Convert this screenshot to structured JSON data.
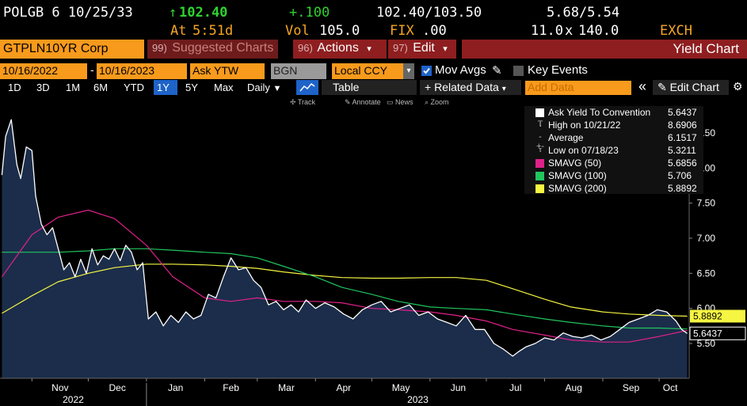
{
  "quote": {
    "security": "POLGB 6 10/25/33",
    "arrow": "↑",
    "price": "102.40",
    "change": "+.100",
    "bid_ask": "102.40/103.50",
    "yield_bid_ask": "5.68/5.54",
    "time_label": "At",
    "time_value": "5:51d",
    "vol_label": "Vol",
    "vol_value": "105.0",
    "fix_label": "FIX",
    "fix_value": ".00",
    "size_left": "11.0",
    "size_sep": "x",
    "size_right": "140.0",
    "exch": "EXCH"
  },
  "command": {
    "ticker": "GTPLN10YR Corp",
    "suggested_num": "99)",
    "suggested_label": "Suggested Charts",
    "actions_num": "96)",
    "actions_label": "Actions",
    "edit_num": "97)",
    "edit_label": "Edit",
    "caret": "▾",
    "title": "Yield Chart"
  },
  "params": {
    "start_date": "10/16/2022",
    "dash": "-",
    "end_date": "10/16/2023",
    "field": "Ask YTW",
    "source": "BGN",
    "currency": "Local CCY",
    "mov_avgs_label": "Mov Avgs",
    "key_events_label": "Key Events",
    "dropdown_glyph": "▾",
    "pencil_glyph": "✎"
  },
  "periods": {
    "items": [
      "1D",
      "3D",
      "1M",
      "6M",
      "YTD",
      "1Y",
      "5Y",
      "Max"
    ],
    "selected": "1Y",
    "frequency": "Daily",
    "frequency_caret": "▼",
    "table_label": "Table",
    "related_label": "+ Related Data",
    "related_caret": "▾",
    "add_data_placeholder": "Add Data",
    "collapse_glyph": "«",
    "edit_chart_label": "✎ Edit Chart",
    "gear_glyph": "⚙"
  },
  "toolbar": {
    "track": "Track",
    "annotate": "Annotate",
    "news": "News",
    "zoom": "Zoom"
  },
  "legend": {
    "main": {
      "label": "Ask Yield To Convention",
      "value": "5.6437"
    },
    "high": {
      "label": "High on 10/21/22",
      "value": "8.6906"
    },
    "avg": {
      "label": "Average",
      "value": "6.1517"
    },
    "low": {
      "label": "Low on 07/18/23",
      "value": "5.3211"
    },
    "sma50": {
      "label": "SMAVG (50)",
      "value": "5.6856"
    },
    "sma100": {
      "label": "SMAVG (100)",
      "value": "5.706"
    },
    "sma200": {
      "label": "SMAVG (200)",
      "value": "5.8892"
    }
  },
  "colors": {
    "amber": "#f5a623",
    "up_green": "#2fd22f",
    "brand_red": "#8e1e20",
    "orange_field": "#f89a1c",
    "selected_blue": "#1e63c8",
    "price_line": "#ffffff",
    "price_fill": "#1b2d4a",
    "sma50": "#e0218a",
    "sma100": "#22c55e",
    "sma200": "#f5f542"
  },
  "chart_data": {
    "type": "area",
    "y_ticks": [
      "8.50",
      "8.00",
      "7.50",
      "7.00",
      "6.50",
      "6.00",
      "5.50"
    ],
    "ylim": [
      5.0,
      8.9
    ],
    "x_months": [
      "Nov",
      "Dec",
      "Jan",
      "Feb",
      "Mar",
      "Apr",
      "May",
      "Jun",
      "Jul",
      "Aug",
      "Sep",
      "Oct"
    ],
    "x_years": [
      "2022",
      "2023"
    ],
    "last_labels": {
      "sma200": "5.8892",
      "price": "5.6437"
    },
    "series": [
      {
        "name": "Ask Yield To Convention",
        "key": "price",
        "x": [
          "2022-10-16",
          "2022-10-18",
          "2022-10-21",
          "2022-10-24",
          "2022-10-26",
          "2022-10-29",
          "2022-11-01",
          "2022-11-03",
          "2022-11-06",
          "2022-11-09",
          "2022-11-12",
          "2022-11-15",
          "2022-11-18",
          "2022-11-21",
          "2022-11-24",
          "2022-11-27",
          "2022-11-30",
          "2022-12-03",
          "2022-12-06",
          "2022-12-09",
          "2022-12-12",
          "2022-12-15",
          "2022-12-18",
          "2022-12-21",
          "2022-12-24",
          "2022-12-27",
          "2022-12-30",
          "2023-01-02",
          "2023-01-06",
          "2023-01-10",
          "2023-01-14",
          "2023-01-18",
          "2023-01-22",
          "2023-01-26",
          "2023-01-30",
          "2023-02-03",
          "2023-02-07",
          "2023-02-11",
          "2023-02-15",
          "2023-02-19",
          "2023-02-23",
          "2023-02-27",
          "2023-03-03",
          "2023-03-07",
          "2023-03-11",
          "2023-03-15",
          "2023-03-19",
          "2023-03-23",
          "2023-03-27",
          "2023-04-01",
          "2023-04-06",
          "2023-04-11",
          "2023-04-16",
          "2023-04-21",
          "2023-04-26",
          "2023-05-01",
          "2023-05-06",
          "2023-05-11",
          "2023-05-16",
          "2023-05-21",
          "2023-05-26",
          "2023-05-31",
          "2023-06-05",
          "2023-06-10",
          "2023-06-15",
          "2023-06-20",
          "2023-06-25",
          "2023-06-30",
          "2023-07-05",
          "2023-07-10",
          "2023-07-15",
          "2023-07-18",
          "2023-07-22",
          "2023-07-27",
          "2023-08-01",
          "2023-08-06",
          "2023-08-11",
          "2023-08-16",
          "2023-08-21",
          "2023-08-26",
          "2023-08-31",
          "2023-09-05",
          "2023-09-10",
          "2023-09-15",
          "2023-09-20",
          "2023-09-25",
          "2023-09-30",
          "2023-10-05",
          "2023-10-10",
          "2023-10-13",
          "2023-10-16"
        ],
        "y": [
          7.9,
          8.45,
          8.69,
          8.05,
          7.85,
          8.3,
          8.25,
          7.6,
          7.2,
          7.05,
          7.15,
          6.85,
          6.55,
          6.65,
          6.45,
          6.7,
          6.5,
          6.85,
          6.62,
          6.75,
          6.7,
          6.85,
          6.68,
          6.9,
          6.8,
          6.55,
          6.65,
          5.85,
          5.95,
          5.75,
          5.9,
          5.8,
          5.95,
          5.85,
          5.9,
          6.2,
          6.15,
          6.45,
          6.72,
          6.55,
          6.58,
          6.4,
          6.3,
          6.05,
          6.1,
          5.98,
          6.05,
          5.95,
          6.12,
          6.0,
          6.08,
          6.02,
          5.92,
          5.85,
          5.98,
          6.05,
          6.1,
          5.95,
          6.0,
          6.05,
          5.9,
          5.95,
          5.85,
          5.8,
          5.75,
          5.9,
          5.7,
          5.7,
          5.5,
          5.42,
          5.32,
          5.38,
          5.45,
          5.5,
          5.58,
          5.55,
          5.65,
          5.6,
          5.58,
          5.62,
          5.55,
          5.6,
          5.7,
          5.8,
          5.85,
          5.9,
          5.98,
          5.95,
          5.82,
          5.7,
          5.6437
        ]
      },
      {
        "name": "SMAVG (50)",
        "key": "sma50",
        "x": [
          "2022-10-16",
          "2022-11-01",
          "2022-11-15",
          "2022-12-01",
          "2022-12-15",
          "2023-01-01",
          "2023-01-15",
          "2023-02-01",
          "2023-02-15",
          "2023-03-01",
          "2023-03-15",
          "2023-04-01",
          "2023-04-15",
          "2023-05-01",
          "2023-05-15",
          "2023-06-01",
          "2023-06-15",
          "2023-07-01",
          "2023-07-15",
          "2023-08-01",
          "2023-08-15",
          "2023-09-01",
          "2023-09-15",
          "2023-10-01",
          "2023-10-16"
        ],
        "y": [
          6.45,
          7.05,
          7.3,
          7.4,
          7.28,
          6.9,
          6.45,
          6.15,
          6.1,
          6.15,
          6.1,
          6.1,
          6.08,
          6.0,
          5.98,
          5.95,
          5.9,
          5.82,
          5.7,
          5.62,
          5.55,
          5.52,
          5.52,
          5.6,
          5.6856
        ]
      },
      {
        "name": "SMAVG (100)",
        "key": "sma100",
        "x": [
          "2022-10-16",
          "2022-11-01",
          "2022-11-15",
          "2022-12-01",
          "2022-12-15",
          "2023-01-01",
          "2023-01-15",
          "2023-02-01",
          "2023-02-15",
          "2023-03-01",
          "2023-03-15",
          "2023-04-01",
          "2023-04-15",
          "2023-05-01",
          "2023-05-15",
          "2023-06-01",
          "2023-06-15",
          "2023-07-01",
          "2023-07-15",
          "2023-08-01",
          "2023-08-15",
          "2023-09-01",
          "2023-09-15",
          "2023-10-01",
          "2023-10-16"
        ],
        "y": [
          6.8,
          6.8,
          6.8,
          6.82,
          6.85,
          6.85,
          6.83,
          6.8,
          6.78,
          6.72,
          6.6,
          6.45,
          6.3,
          6.2,
          6.1,
          6.02,
          6.0,
          5.98,
          5.92,
          5.85,
          5.8,
          5.75,
          5.72,
          5.72,
          5.706
        ]
      },
      {
        "name": "SMAVG (200)",
        "key": "sma200",
        "x": [
          "2022-10-16",
          "2022-11-01",
          "2022-11-15",
          "2022-12-01",
          "2022-12-15",
          "2023-01-01",
          "2023-01-15",
          "2023-02-01",
          "2023-02-15",
          "2023-03-01",
          "2023-03-15",
          "2023-04-01",
          "2023-04-15",
          "2023-05-01",
          "2023-05-15",
          "2023-06-01",
          "2023-06-15",
          "2023-07-01",
          "2023-07-15",
          "2023-08-01",
          "2023-08-15",
          "2023-09-01",
          "2023-09-15",
          "2023-10-01",
          "2023-10-16"
        ],
        "y": [
          5.93,
          6.18,
          6.38,
          6.5,
          6.58,
          6.63,
          6.63,
          6.62,
          6.6,
          6.57,
          6.52,
          6.47,
          6.44,
          6.43,
          6.43,
          6.44,
          6.44,
          6.4,
          6.28,
          6.13,
          6.02,
          5.95,
          5.92,
          5.9,
          5.8892
        ]
      }
    ]
  }
}
